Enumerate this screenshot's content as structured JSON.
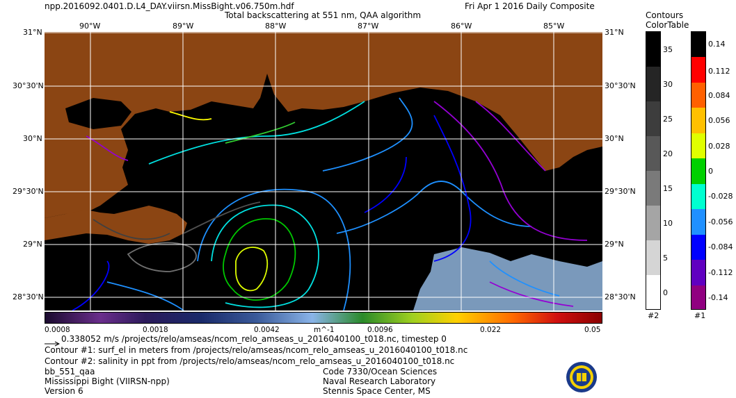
{
  "header": {
    "filename": "npp.2016092.0401.D.L4_DAY.viirsn.MissBight.v06.750m.hdf",
    "product_title": "Total backscattering at 551 nm, QAA algorithm",
    "date_label": "Fri Apr  1 2016 Daily Composite"
  },
  "map": {
    "lon_labels_top": [
      "90°W",
      "89°W",
      "88°W",
      "87°W",
      "86°W",
      "85°W"
    ],
    "lat_labels_left": [
      "31°N",
      "30°30'N",
      "30°N",
      "29°30'N",
      "29°N",
      "28°30'N"
    ],
    "lat_labels_right": [
      "31°N",
      "30°30'N",
      "30°N",
      "29°30'N",
      "29°N",
      "28°30'N"
    ],
    "colors": {
      "land": "#8b4513",
      "ocean": "#000000",
      "grid": "#ffffff",
      "cloud": "#8fb4dc"
    }
  },
  "colorbar": {
    "tick_labels": [
      "0.0008",
      "0.0018",
      "0.0042",
      "m^-1",
      "0.0096",
      "0.022",
      "0.05"
    ]
  },
  "contours_legend": {
    "title_line1": "Contours",
    "title_line2": "ColorTable",
    "salinity_scale": {
      "labels": [
        "35",
        "30",
        "25",
        "20",
        "15",
        "10",
        "5",
        "0"
      ],
      "id_label": "#2"
    },
    "surf_el_scale": {
      "labels": [
        "0.14",
        "0.112",
        "0.084",
        "0.056",
        "0.028",
        "0",
        "-0.028",
        "-0.056",
        "-0.084",
        "-0.112",
        "-0.14"
      ],
      "id_label": "#1"
    }
  },
  "footer": {
    "vector_line": "0.338052 m/s /projects/relo/amseas/ncom_relo_amseas_u_2016040100_t018.nc, timestep 0",
    "contour1_line": "Contour #1: surf_el in meters from /projects/relo/amseas/ncom_relo_amseas_u_2016040100_t018.nc",
    "contour2_line": "Contour #2: salinity in ppt from /projects/relo/amseas/ncom_relo_amseas_u_2016040100_t018.nc",
    "left_lines": [
      "bb_551_qaa",
      "Mississippi Bight (VIIRSN-npp)",
      "Version 6"
    ],
    "right_lines": [
      "Code 7330/Ocean Sciences",
      "Naval Research Laboratory",
      "Stennis Space Center, MS"
    ]
  }
}
